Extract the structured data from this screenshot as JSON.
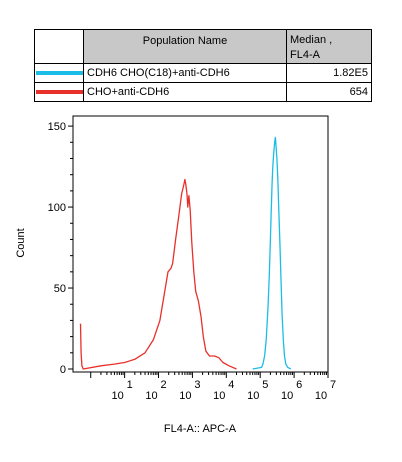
{
  "legend": {
    "header_name": "Population Name",
    "header_median_line1": "Median ,",
    "header_median_line2": "FL4-A",
    "rows": [
      {
        "name": "CDH6 CHO(C18)+anti-CDH6",
        "median": "1.82E5",
        "color": "#1bbde6"
      },
      {
        "name": "CHO+anti-CDH6",
        "median": "654",
        "color": "#e8302b"
      }
    ]
  },
  "chart_data": {
    "type": "line",
    "title": "",
    "xlabel": "FL4-A:: APC-A",
    "ylabel": "Count",
    "xscale": "log",
    "xlim": [
      0.3,
      10000000
    ],
    "ylim": [
      0,
      155
    ],
    "yticks": [
      0,
      50,
      100,
      150
    ],
    "xtick_exponents": [
      "1",
      "2",
      "3",
      "4",
      "5",
      "6",
      "7"
    ],
    "series": [
      {
        "name": "CDH6 CHO(C18)+anti-CDH6",
        "color": "#1bbde6",
        "points": [
          [
            60000,
            0
          ],
          [
            110000,
            1
          ],
          [
            120000,
            3
          ],
          [
            135000,
            8
          ],
          [
            150000,
            18
          ],
          [
            170000,
            38
          ],
          [
            185000,
            58
          ],
          [
            200000,
            80
          ],
          [
            210000,
            95
          ],
          [
            225000,
            115
          ],
          [
            235000,
            125
          ],
          [
            250000,
            133
          ],
          [
            270000,
            141
          ],
          [
            280000,
            143
          ],
          [
            295000,
            137
          ],
          [
            310000,
            130
          ],
          [
            330000,
            118
          ],
          [
            350000,
            102
          ],
          [
            380000,
            78
          ],
          [
            410000,
            55
          ],
          [
            440000,
            35
          ],
          [
            480000,
            18
          ],
          [
            520000,
            8
          ],
          [
            570000,
            3
          ],
          [
            650000,
            1
          ],
          [
            800000,
            0
          ]
        ]
      },
      {
        "name": "CHO+anti-CDH6",
        "color": "#e8302b",
        "points": [
          [
            0.5,
            28
          ],
          [
            0.52,
            10
          ],
          [
            0.55,
            2
          ],
          [
            0.6,
            0
          ],
          [
            2,
            2
          ],
          [
            5,
            3
          ],
          [
            10,
            4
          ],
          [
            20,
            6
          ],
          [
            40,
            10
          ],
          [
            70,
            18
          ],
          [
            110,
            30
          ],
          [
            150,
            47
          ],
          [
            190,
            60
          ],
          [
            230,
            62
          ],
          [
            260,
            65
          ],
          [
            320,
            80
          ],
          [
            400,
            95
          ],
          [
            480,
            108
          ],
          [
            560,
            114
          ],
          [
            600,
            117
          ],
          [
            640,
            114
          ],
          [
            690,
            108
          ],
          [
            730,
            100
          ],
          [
            790,
            107
          ],
          [
            860,
            98
          ],
          [
            960,
            78
          ],
          [
            1100,
            60
          ],
          [
            1250,
            48
          ],
          [
            1500,
            42
          ],
          [
            1800,
            32
          ],
          [
            2100,
            20
          ],
          [
            2500,
            11
          ],
          [
            3200,
            8
          ],
          [
            4500,
            8
          ],
          [
            6000,
            7
          ],
          [
            8000,
            4
          ],
          [
            12000,
            2
          ],
          [
            20000,
            0
          ]
        ]
      }
    ]
  }
}
